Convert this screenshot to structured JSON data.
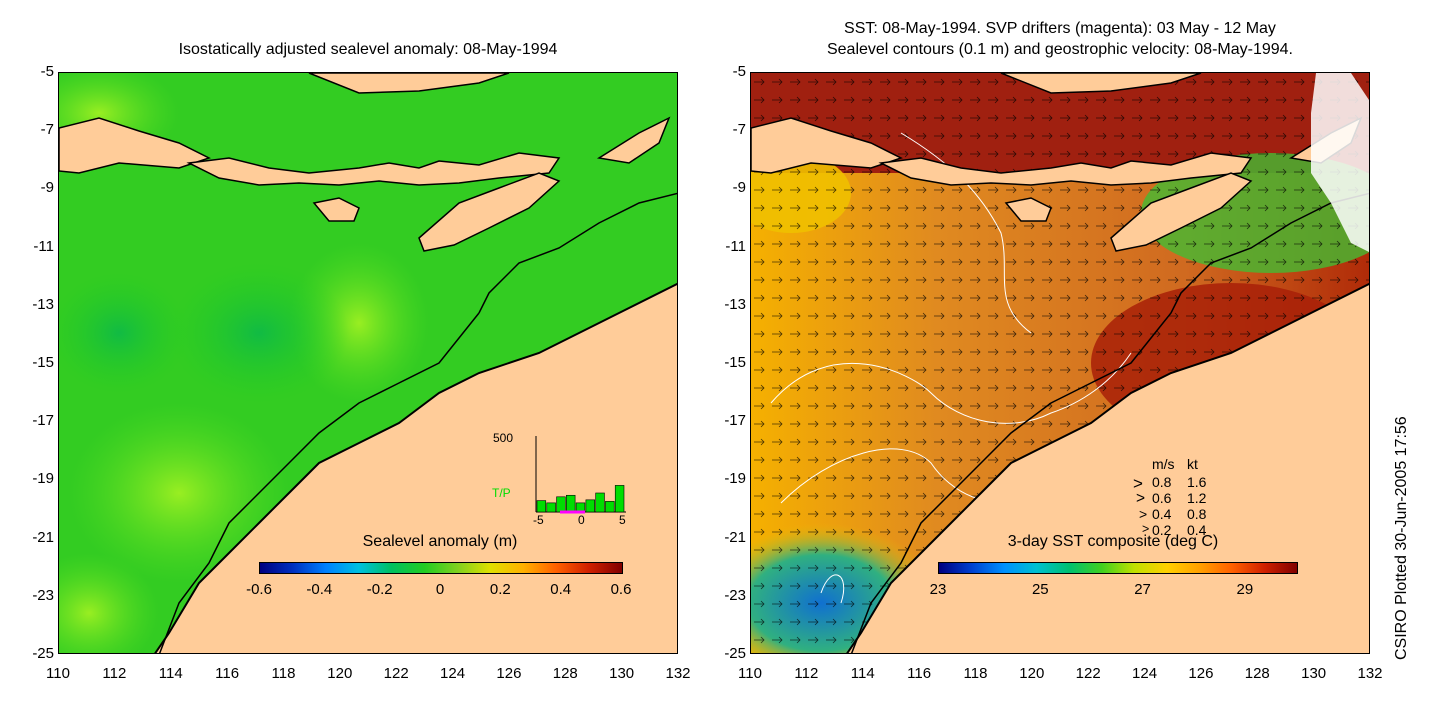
{
  "left_panel": {
    "title": "Isostatically adjusted sealevel anomaly: 08-May-1994",
    "colorbar": {
      "title": "Sealevel anomaly (m)",
      "ticks": [
        "-0.6",
        "-0.4",
        "-0.2",
        "0",
        "0.2",
        "0.4",
        "0.6"
      ]
    },
    "histogram": {
      "ymax_label": "500",
      "series_label": "T/P",
      "x_ticks": [
        "-5",
        "0",
        "5"
      ],
      "bars": [
        0.15,
        0.12,
        0.2,
        0.22,
        0.12,
        0.16,
        0.25,
        0.14,
        0.35
      ],
      "colors": {
        "bar": "#00dd00",
        "track": "#ff00ff"
      }
    }
  },
  "right_panel": {
    "title_line1": "SST: 08-May-1994. SVP drifters (magenta): 03 May - 12 May",
    "title_line2": "Sealevel contours (0.1 m) and geostrophic velocity: 08-May-1994.",
    "colorbar": {
      "title": "3-day SST composite (deg C)",
      "ticks": [
        "23",
        "25",
        "27",
        "29"
      ]
    },
    "velocity_legend": {
      "header_ms": "m/s",
      "header_kt": "kt",
      "rows": [
        {
          "ms": "0.8",
          "kt": "1.6"
        },
        {
          "ms": "0.6",
          "kt": "1.2"
        },
        {
          "ms": "0.4",
          "kt": "0.8"
        },
        {
          "ms": "0.2",
          "kt": "0.4"
        }
      ]
    }
  },
  "axes": {
    "x_ticks": [
      "110",
      "112",
      "114",
      "116",
      "118",
      "120",
      "122",
      "124",
      "126",
      "128",
      "130",
      "132"
    ],
    "y_ticks": [
      "-5",
      "-7",
      "-9",
      "-11",
      "-13",
      "-15",
      "-17",
      "-19",
      "-21",
      "-23",
      "-25"
    ]
  },
  "credit": "CSIRO Plotted 30-Jun-2005 17:56",
  "colors": {
    "land": "#ffcc99",
    "sea_green": "#22cc22",
    "sst_orange": "#dd7722",
    "sst_red": "#aa2200"
  }
}
